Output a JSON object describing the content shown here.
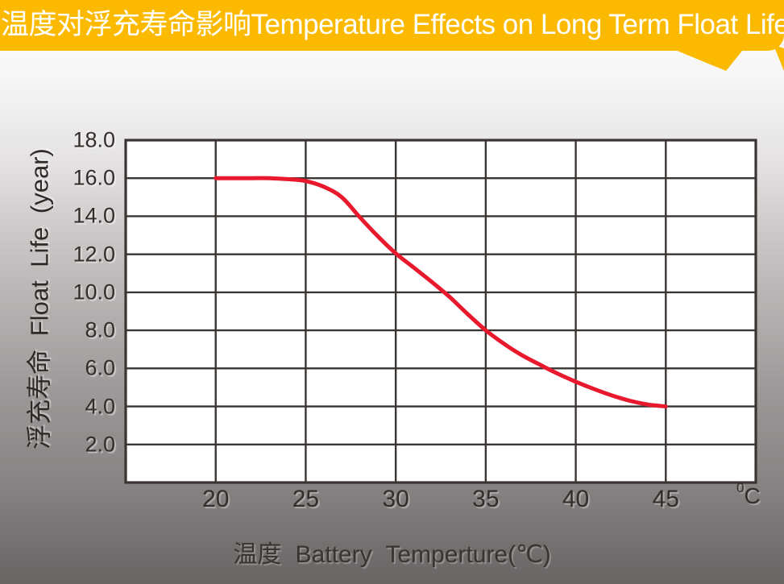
{
  "banner": {
    "title": "温度对浮充寿命影响Temperature Effects on Long Term Float Life",
    "background_color": "#FBBA00",
    "text_color": "#FFFFFF"
  },
  "chart_data": {
    "type": "line",
    "title": "温度对浮充寿命影响Temperature Effects on Long Term Float Life",
    "xlabel": "温度  Battery  Temperture(℃)",
    "ylabel": "浮充寿命  Float Life (year)",
    "x_unit_superscript": "0",
    "x_unit_letter": "C",
    "xlim": [
      15,
      50
    ],
    "ylim": [
      0,
      18
    ],
    "x_ticks": [
      "20",
      "25",
      "30",
      "35",
      "40",
      "45"
    ],
    "y_ticks": [
      "18.0",
      "16.0",
      "14.0",
      "12.0",
      "10.0",
      "8.0",
      "6.0",
      "4.0",
      "2.0"
    ],
    "grid": true,
    "grid_color": "#3A3433",
    "plot_background": "#FFFFFF",
    "legend": "none",
    "series": [
      {
        "name": "float-life-vs-temperature",
        "color": "#E8192C",
        "points": [
          [
            20,
            16.0
          ],
          [
            21,
            16.0
          ],
          [
            22,
            16.0
          ],
          [
            23,
            16.0
          ],
          [
            24,
            15.95
          ],
          [
            25,
            15.85
          ],
          [
            26,
            15.55
          ],
          [
            27,
            15.0
          ],
          [
            28,
            13.95
          ],
          [
            29,
            12.95
          ],
          [
            30,
            12.05
          ],
          [
            31,
            11.3
          ],
          [
            32,
            10.55
          ],
          [
            33,
            9.75
          ],
          [
            34,
            8.85
          ],
          [
            35,
            8.0
          ],
          [
            36,
            7.3
          ],
          [
            37,
            6.7
          ],
          [
            38,
            6.2
          ],
          [
            39,
            5.72
          ],
          [
            40,
            5.3
          ],
          [
            41,
            4.92
          ],
          [
            42,
            4.58
          ],
          [
            43,
            4.3
          ],
          [
            44,
            4.1
          ],
          [
            45,
            4.0
          ]
        ]
      }
    ]
  }
}
